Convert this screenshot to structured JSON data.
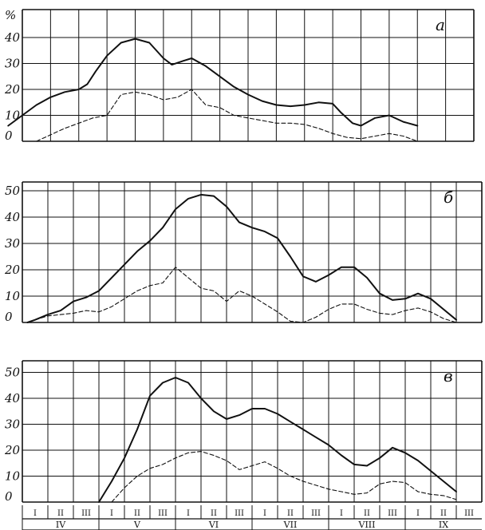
{
  "chart_data": [
    {
      "type": "line",
      "panel_label": "а",
      "y_unit": "%",
      "ylim": [
        0,
        45
      ],
      "yticks": [
        0,
        10,
        20,
        30,
        40
      ],
      "grid": true,
      "x": [
        0,
        1,
        2,
        3,
        4,
        5,
        6,
        7,
        8,
        9,
        10,
        11,
        12,
        13,
        14,
        15,
        16
      ],
      "series": [
        {
          "style": "solid",
          "values": [
            [
              -0.5,
              6
            ],
            [
              0,
              10
            ],
            [
              0.5,
              14
            ],
            [
              1,
              17
            ],
            [
              1.5,
              19
            ],
            [
              2,
              20
            ],
            [
              2.3,
              22
            ],
            [
              2.6,
              27
            ],
            [
              3,
              33
            ],
            [
              3.5,
              38
            ],
            [
              4,
              39.5
            ],
            [
              4.5,
              38
            ],
            [
              5,
              32
            ],
            [
              5.3,
              29.5
            ],
            [
              5.7,
              31
            ],
            [
              6,
              32
            ],
            [
              6.5,
              29
            ],
            [
              7,
              25
            ],
            [
              7.5,
              21
            ],
            [
              8,
              18
            ],
            [
              8.5,
              15.5
            ],
            [
              9,
              14
            ],
            [
              9.5,
              13.5
            ],
            [
              10,
              14
            ],
            [
              10.5,
              15
            ],
            [
              11,
              14.5
            ],
            [
              11.3,
              11
            ],
            [
              11.7,
              7
            ],
            [
              12,
              6
            ],
            [
              12.5,
              9
            ],
            [
              13,
              10
            ],
            [
              13.5,
              7.5
            ],
            [
              14,
              6
            ]
          ]
        },
        {
          "style": "dashed",
          "values": [
            [
              0.5,
              0
            ],
            [
              1,
              2.5
            ],
            [
              1.5,
              5
            ],
            [
              2,
              7
            ],
            [
              2.5,
              9
            ],
            [
              3,
              10
            ],
            [
              3.5,
              18
            ],
            [
              4,
              19
            ],
            [
              4.5,
              18
            ],
            [
              5,
              16
            ],
            [
              5.5,
              17
            ],
            [
              6,
              20
            ],
            [
              6.5,
              14
            ],
            [
              7,
              13
            ],
            [
              7.5,
              10
            ],
            [
              8,
              9
            ],
            [
              8.5,
              8
            ],
            [
              9,
              7
            ],
            [
              9.5,
              7
            ],
            [
              10,
              6.5
            ],
            [
              10.5,
              5
            ],
            [
              11,
              3
            ],
            [
              11.5,
              1.5
            ],
            [
              12,
              1
            ],
            [
              12.5,
              2
            ],
            [
              13,
              3
            ],
            [
              13.5,
              2
            ],
            [
              14,
              0
            ]
          ]
        }
      ]
    },
    {
      "type": "line",
      "panel_label": "б",
      "ylim": [
        0,
        53
      ],
      "yticks": [
        0,
        10,
        20,
        30,
        40,
        50
      ],
      "grid": true,
      "x": [
        0,
        1,
        2,
        3,
        4,
        5,
        6,
        7,
        8,
        9,
        10,
        11,
        12,
        13,
        14,
        15,
        16,
        17,
        18
      ],
      "series": [
        {
          "style": "solid",
          "values": [
            [
              0.2,
              0
            ],
            [
              0.5,
              1
            ],
            [
              1,
              3
            ],
            [
              1.5,
              4.5
            ],
            [
              2,
              8
            ],
            [
              2.5,
              9.5
            ],
            [
              3,
              12
            ],
            [
              3.5,
              17
            ],
            [
              4,
              22
            ],
            [
              4.5,
              27
            ],
            [
              5,
              31
            ],
            [
              5.5,
              36
            ],
            [
              6,
              43
            ],
            [
              6.5,
              47
            ],
            [
              7,
              48.5
            ],
            [
              7.5,
              48
            ],
            [
              8,
              44
            ],
            [
              8.5,
              38
            ],
            [
              9,
              36
            ],
            [
              9.5,
              34.5
            ],
            [
              10,
              32
            ],
            [
              10.5,
              25
            ],
            [
              11,
              17.5
            ],
            [
              11.5,
              15.5
            ],
            [
              12,
              18
            ],
            [
              12.5,
              21
            ],
            [
              13,
              21
            ],
            [
              13.5,
              17
            ],
            [
              14,
              11
            ],
            [
              14.5,
              8.5
            ],
            [
              15,
              9
            ],
            [
              15.5,
              11
            ],
            [
              16,
              9
            ],
            [
              16.5,
              5
            ],
            [
              17,
              1
            ]
          ]
        },
        {
          "style": "dashed",
          "values": [
            [
              0.5,
              1
            ],
            [
              1,
              2.5
            ],
            [
              1.5,
              3
            ],
            [
              2,
              3.5
            ],
            [
              2.5,
              4.5
            ],
            [
              3,
              4
            ],
            [
              3.5,
              6
            ],
            [
              4,
              9
            ],
            [
              4.5,
              12
            ],
            [
              5,
              14
            ],
            [
              5.5,
              15
            ],
            [
              6,
              21
            ],
            [
              6.5,
              17
            ],
            [
              7,
              13
            ],
            [
              7.5,
              12
            ],
            [
              8,
              8
            ],
            [
              8.5,
              12
            ],
            [
              9,
              10
            ],
            [
              9.5,
              7
            ],
            [
              10,
              4
            ],
            [
              10.5,
              0.5
            ],
            [
              11,
              0
            ],
            [
              11.5,
              2
            ],
            [
              12,
              5
            ],
            [
              12.5,
              7
            ],
            [
              13,
              7
            ],
            [
              13.5,
              5
            ],
            [
              14,
              3.5
            ],
            [
              14.5,
              3
            ],
            [
              15,
              4.5
            ],
            [
              15.5,
              5.5
            ],
            [
              16,
              4
            ],
            [
              16.5,
              1.5
            ],
            [
              17,
              0
            ]
          ]
        }
      ]
    },
    {
      "type": "line",
      "panel_label": "в",
      "ylim": [
        0,
        55
      ],
      "yticks": [
        0,
        10,
        20,
        30,
        40,
        50
      ],
      "grid": true,
      "decade_labels": [
        "I",
        "II",
        "III",
        "I",
        "II",
        "III",
        "I",
        "II",
        "III",
        "I",
        "II",
        "III",
        "I",
        "II",
        "III",
        "I",
        "II",
        "III"
      ],
      "month_labels": [
        "IV",
        "V",
        "VI",
        "VII",
        "VIII",
        "IX"
      ],
      "series": [
        {
          "style": "solid",
          "values": [
            [
              3,
              0
            ],
            [
              3.5,
              8
            ],
            [
              4,
              17
            ],
            [
              4.5,
              28
            ],
            [
              5,
              41
            ],
            [
              5.5,
              46
            ],
            [
              6,
              48
            ],
            [
              6.5,
              46
            ],
            [
              7,
              40
            ],
            [
              7.5,
              35
            ],
            [
              8,
              32
            ],
            [
              8.5,
              33.5
            ],
            [
              9,
              36
            ],
            [
              9.5,
              36
            ],
            [
              10,
              34
            ],
            [
              10.5,
              31
            ],
            [
              11,
              28
            ],
            [
              11.5,
              25
            ],
            [
              12,
              22
            ],
            [
              12.5,
              18
            ],
            [
              13,
              14.5
            ],
            [
              13.5,
              14
            ],
            [
              14,
              17
            ],
            [
              14.5,
              21
            ],
            [
              15,
              19
            ],
            [
              15.5,
              16
            ],
            [
              16,
              12
            ],
            [
              16.5,
              8
            ],
            [
              17,
              4
            ]
          ]
        },
        {
          "style": "dashed",
          "values": [
            [
              3.5,
              0
            ],
            [
              4,
              5.5
            ],
            [
              4.5,
              10
            ],
            [
              5,
              13
            ],
            [
              5.5,
              14.5
            ],
            [
              6,
              17
            ],
            [
              6.5,
              19
            ],
            [
              7,
              19.5
            ],
            [
              7.5,
              18
            ],
            [
              8,
              16
            ],
            [
              8.5,
              12.5
            ],
            [
              9,
              14
            ],
            [
              9.5,
              15.5
            ],
            [
              10,
              13
            ],
            [
              10.5,
              10
            ],
            [
              11,
              8
            ],
            [
              11.5,
              6.5
            ],
            [
              12,
              5
            ],
            [
              12.5,
              4
            ],
            [
              13,
              3
            ],
            [
              13.5,
              3.5
            ],
            [
              14,
              7
            ],
            [
              14.5,
              8
            ],
            [
              15,
              7.5
            ],
            [
              15.5,
              4
            ],
            [
              16,
              3
            ],
            [
              16.5,
              2.5
            ],
            [
              17,
              1
            ]
          ]
        }
      ]
    }
  ]
}
